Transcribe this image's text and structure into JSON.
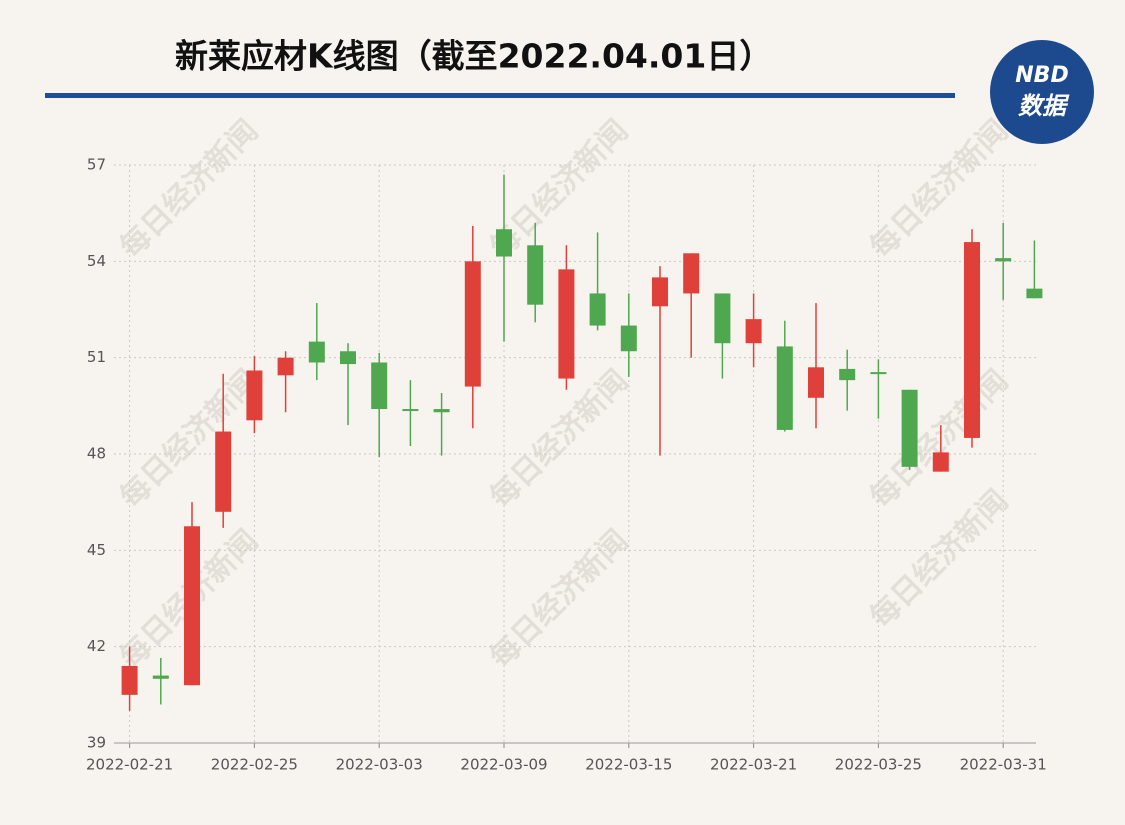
{
  "chart_data": {
    "type": "candlestick",
    "title": "新莱应材K线图（截至2022.04.01日）",
    "logo": {
      "top": "NBD",
      "bottom": "数据"
    },
    "watermark": "每日经济新闻",
    "categories": [
      "2022-02-21",
      null,
      null,
      null,
      "2022-02-25",
      null,
      null,
      null,
      "2022-03-03",
      null,
      null,
      null,
      "2022-03-09",
      null,
      null,
      null,
      "2022-03-15",
      null,
      null,
      null,
      "2022-03-21",
      null,
      null,
      null,
      "2022-03-25",
      null,
      null,
      null,
      "2022-03-31",
      null
    ],
    "open": [
      40.5,
      41.1,
      40.8,
      46.2,
      49.05,
      50.45,
      51.5,
      51.2,
      50.85,
      49.4,
      49.4,
      50.1,
      55.0,
      54.5,
      50.35,
      53.0,
      52.0,
      52.6,
      53.0,
      53.0,
      51.45,
      51.35,
      49.75,
      50.65,
      50.55,
      50.0,
      47.45,
      48.5,
      54.1,
      53.15
    ],
    "high": [
      42.0,
      41.65,
      46.5,
      50.5,
      51.05,
      51.2,
      52.7,
      51.45,
      51.15,
      50.3,
      49.9,
      55.1,
      56.7,
      55.2,
      54.5,
      54.9,
      53.0,
      53.85,
      54.25,
      53.0,
      53.0,
      52.15,
      52.7,
      51.25,
      50.95,
      50.0,
      48.9,
      55.0,
      55.2,
      54.65
    ],
    "low": [
      40.0,
      40.2,
      40.8,
      45.7,
      48.65,
      49.3,
      50.3,
      48.9,
      47.9,
      48.25,
      47.95,
      48.8,
      51.5,
      52.1,
      50.0,
      51.85,
      50.4,
      47.95,
      51.0,
      50.35,
      50.7,
      48.7,
      48.8,
      49.35,
      49.1,
      47.5,
      47.45,
      48.2,
      52.8,
      52.85
    ],
    "close": [
      41.4,
      41.0,
      45.75,
      48.7,
      50.6,
      51.0,
      50.85,
      50.8,
      49.4,
      49.35,
      49.3,
      54.0,
      54.15,
      52.65,
      53.75,
      52.0,
      51.2,
      53.5,
      54.25,
      51.45,
      52.2,
      48.75,
      50.7,
      50.3,
      50.5,
      47.6,
      48.05,
      54.6,
      54.0,
      52.85
    ],
    "up_color": "#e0403a",
    "down_color": "#4fa74f",
    "ylim": [
      39,
      57
    ],
    "yticks": [
      39,
      42,
      45,
      48,
      51,
      54,
      57
    ],
    "grid": true
  }
}
